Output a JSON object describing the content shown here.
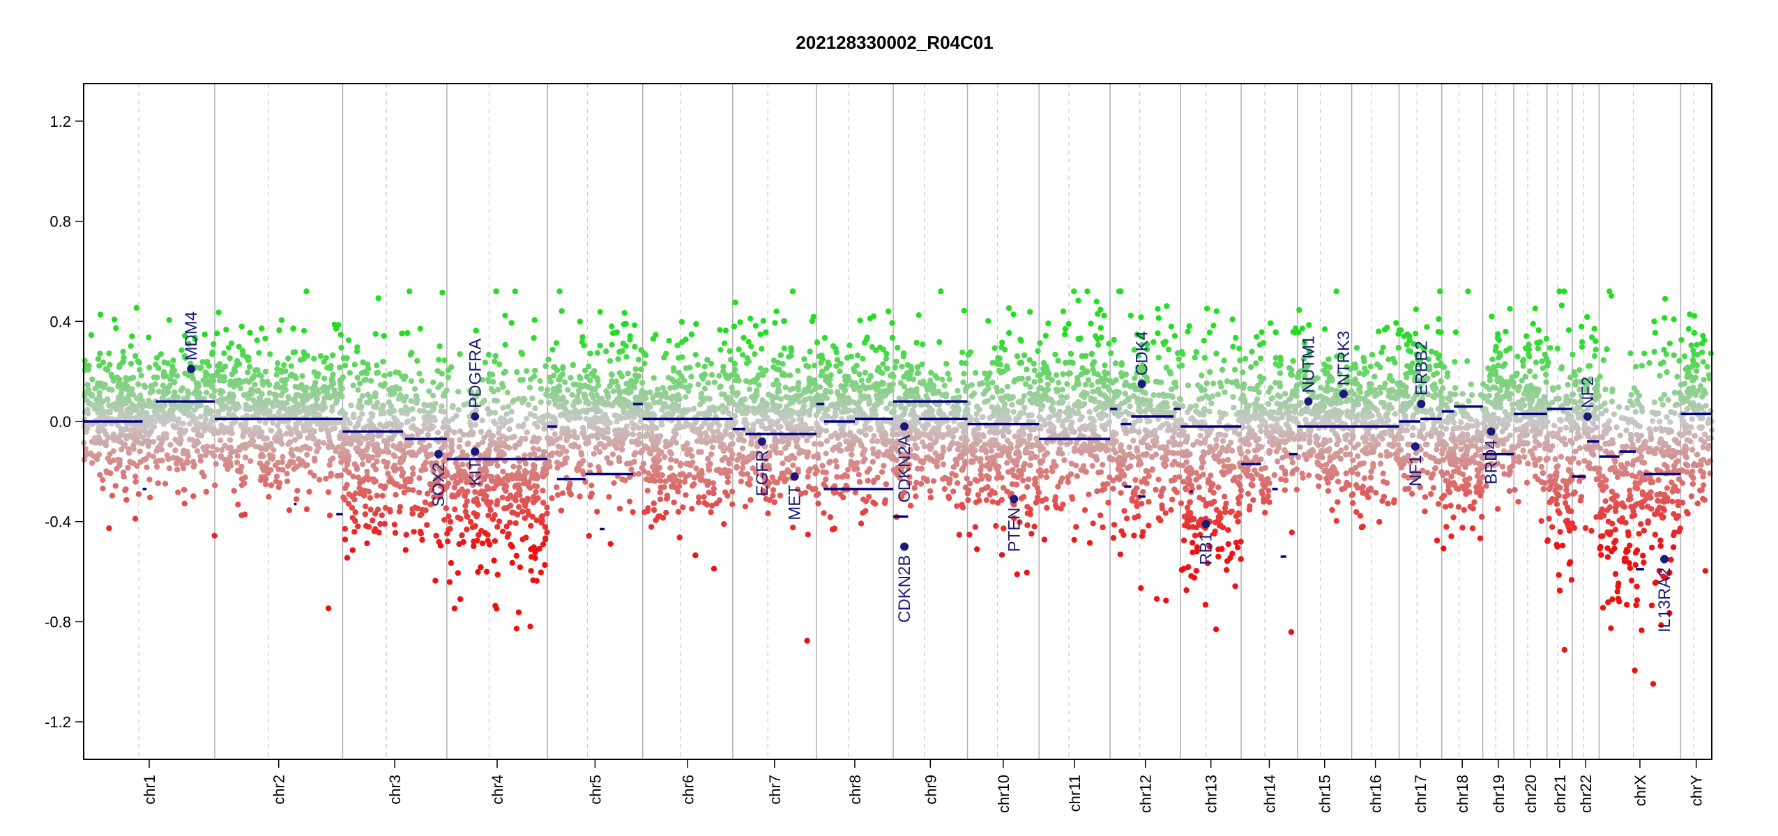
{
  "chart_data": {
    "type": "scatter",
    "title": "202128330002_R04C01",
    "xlabel": "",
    "ylabel": "",
    "ylim": [
      -1.35,
      1.35
    ],
    "yticks": [
      -1.2,
      -0.8,
      -0.4,
      0.0,
      0.4,
      0.8,
      1.2
    ],
    "grid": false,
    "colors": {
      "gain": "#22dd22",
      "neutral": "#c8c8c8",
      "loss": "#ee1111",
      "segment": "#000080",
      "gene": "#1a1a7a"
    },
    "chromosomes": [
      {
        "name": "chr1",
        "length": 249
      },
      {
        "name": "chr2",
        "length": 243
      },
      {
        "name": "chr3",
        "length": 198
      },
      {
        "name": "chr4",
        "length": 191
      },
      {
        "name": "chr5",
        "length": 181
      },
      {
        "name": "chr6",
        "length": 171
      },
      {
        "name": "chr7",
        "length": 159
      },
      {
        "name": "chr8",
        "length": 146
      },
      {
        "name": "chr9",
        "length": 141
      },
      {
        "name": "chr10",
        "length": 136
      },
      {
        "name": "chr11",
        "length": 135
      },
      {
        "name": "chr12",
        "length": 134
      },
      {
        "name": "chr13",
        "length": 115
      },
      {
        "name": "chr14",
        "length": 107
      },
      {
        "name": "chr15",
        "length": 103
      },
      {
        "name": "chr16",
        "length": 90
      },
      {
        "name": "chr17",
        "length": 81
      },
      {
        "name": "chr18",
        "length": 78
      },
      {
        "name": "chr19",
        "length": 59
      },
      {
        "name": "chr20",
        "length": 63
      },
      {
        "name": "chr21",
        "length": 48
      },
      {
        "name": "chr22",
        "length": 51
      },
      {
        "name": "chrX",
        "length": 155
      },
      {
        "name": "chrY",
        "length": 59
      }
    ],
    "segments": [
      {
        "chr": "chr1",
        "start": 0.0,
        "end": 0.45,
        "value": 0.0
      },
      {
        "chr": "chr1",
        "start": 0.45,
        "end": 0.48,
        "value": -0.27
      },
      {
        "chr": "chr1",
        "start": 0.55,
        "end": 1.0,
        "value": 0.08
      },
      {
        "chr": "chr2",
        "start": 0.0,
        "end": 1.0,
        "value": 0.01
      },
      {
        "chr": "chr2",
        "start": 0.62,
        "end": 0.64,
        "value": -0.33
      },
      {
        "chr": "chr2",
        "start": 0.95,
        "end": 1.0,
        "value": -0.37
      },
      {
        "chr": "chr3",
        "start": 0.0,
        "end": 0.58,
        "value": -0.04
      },
      {
        "chr": "chr3",
        "start": 0.6,
        "end": 1.0,
        "value": -0.07
      },
      {
        "chr": "chr3",
        "start": 1.0,
        "end": 1.0,
        "value": -0.07
      },
      {
        "chr": "chr4",
        "start": 0.0,
        "end": 1.0,
        "value": -0.15
      },
      {
        "chr": "chr5",
        "start": 0.0,
        "end": 0.1,
        "value": -0.02
      },
      {
        "chr": "chr5",
        "start": 0.1,
        "end": 0.4,
        "value": -0.23
      },
      {
        "chr": "chr5",
        "start": 0.4,
        "end": 0.9,
        "value": -0.21
      },
      {
        "chr": "chr5",
        "start": 0.55,
        "end": 0.6,
        "value": -0.43
      },
      {
        "chr": "chr5",
        "start": 0.9,
        "end": 1.0,
        "value": 0.07
      },
      {
        "chr": "chr6",
        "start": 0.0,
        "end": 1.0,
        "value": 0.01
      },
      {
        "chr": "chr7",
        "start": 0.0,
        "end": 0.15,
        "value": -0.03
      },
      {
        "chr": "chr7",
        "start": 0.15,
        "end": 1.0,
        "value": -0.05
      },
      {
        "chr": "chr8",
        "start": 0.0,
        "end": 0.1,
        "value": 0.07
      },
      {
        "chr": "chr8",
        "start": 0.1,
        "end": 1.0,
        "value": -0.27
      },
      {
        "chr": "chr8",
        "start": 0.1,
        "end": 0.5,
        "value": 0.0
      },
      {
        "chr": "chr8",
        "start": 0.5,
        "end": 1.0,
        "value": 0.01
      },
      {
        "chr": "chr9",
        "start": 0.0,
        "end": 0.2,
        "value": -0.38
      },
      {
        "chr": "chr9",
        "start": 0.35,
        "end": 1.0,
        "value": 0.01
      },
      {
        "chr": "chr9",
        "start": 0.0,
        "end": 1.0,
        "value": 0.08
      },
      {
        "chr": "chr10",
        "start": 0.0,
        "end": 0.5,
        "value": -0.01
      },
      {
        "chr": "chr10",
        "start": 0.5,
        "end": 1.0,
        "value": -0.01
      },
      {
        "chr": "chr11",
        "start": 0.0,
        "end": 1.0,
        "value": -0.07
      },
      {
        "chr": "chr12",
        "start": 0.0,
        "end": 0.1,
        "value": 0.05
      },
      {
        "chr": "chr12",
        "start": 0.15,
        "end": 0.3,
        "value": -0.01
      },
      {
        "chr": "chr12",
        "start": 0.3,
        "end": 0.9,
        "value": 0.02
      },
      {
        "chr": "chr12",
        "start": 0.2,
        "end": 0.3,
        "value": -0.26
      },
      {
        "chr": "chr12",
        "start": 0.4,
        "end": 0.5,
        "value": -0.3
      },
      {
        "chr": "chr12",
        "start": 0.9,
        "end": 1.0,
        "value": 0.05
      },
      {
        "chr": "chr13",
        "start": 0.0,
        "end": 1.0,
        "value": -0.02
      },
      {
        "chr": "chr13",
        "start": 0.15,
        "end": 0.2,
        "value": -0.28
      },
      {
        "chr": "chr14",
        "start": 0.0,
        "end": 0.35,
        "value": -0.17
      },
      {
        "chr": "chr14",
        "start": 0.55,
        "end": 0.65,
        "value": -0.27
      },
      {
        "chr": "chr14",
        "start": 0.7,
        "end": 0.8,
        "value": -0.54
      },
      {
        "chr": "chr14",
        "start": 0.85,
        "end": 1.0,
        "value": -0.13
      },
      {
        "chr": "chr15",
        "start": 0.0,
        "end": 1.0,
        "value": -0.02
      },
      {
        "chr": "chr16",
        "start": 0.0,
        "end": 1.0,
        "value": -0.02
      },
      {
        "chr": "chr17",
        "start": 0.0,
        "end": 0.5,
        "value": 0.0
      },
      {
        "chr": "chr17",
        "start": 0.5,
        "end": 1.0,
        "value": 0.01
      },
      {
        "chr": "chr18",
        "start": 0.0,
        "end": 0.3,
        "value": 0.04
      },
      {
        "chr": "chr18",
        "start": 0.3,
        "end": 1.0,
        "value": 0.06
      },
      {
        "chr": "chr19",
        "start": 0.0,
        "end": 1.0,
        "value": -0.13
      },
      {
        "chr": "chr20",
        "start": 0.0,
        "end": 1.0,
        "value": 0.03
      },
      {
        "chr": "chr21",
        "start": 0.0,
        "end": 1.0,
        "value": 0.05
      },
      {
        "chr": "chr22",
        "start": 0.0,
        "end": 0.5,
        "value": -0.22
      },
      {
        "chr": "chr22",
        "start": 0.55,
        "end": 1.0,
        "value": -0.08
      },
      {
        "chr": "chrX",
        "start": 0.0,
        "end": 0.25,
        "value": -0.14
      },
      {
        "chr": "chrX",
        "start": 0.25,
        "end": 0.45,
        "value": -0.12
      },
      {
        "chr": "chrX",
        "start": 0.45,
        "end": 0.55,
        "value": -0.59
      },
      {
        "chr": "chrX",
        "start": 0.55,
        "end": 1.0,
        "value": -0.21
      },
      {
        "chr": "chrY",
        "start": 0.0,
        "end": 1.0,
        "value": 0.03
      }
    ],
    "point_profile": [
      {
        "chr": "chr1",
        "mean": 0.02,
        "sd": 0.13
      },
      {
        "chr": "chr2",
        "mean": 0.02,
        "sd": 0.14
      },
      {
        "chr": "chr3",
        "mean": -0.08,
        "sd": 0.18
      },
      {
        "chr": "chr4",
        "mean": -0.18,
        "sd": 0.2
      },
      {
        "chr": "chr5",
        "mean": 0.02,
        "sd": 0.15
      },
      {
        "chr": "chr6",
        "mean": -0.04,
        "sd": 0.16
      },
      {
        "chr": "chr7",
        "mean": 0.0,
        "sd": 0.16
      },
      {
        "chr": "chr8",
        "mean": 0.02,
        "sd": 0.16
      },
      {
        "chr": "chr9",
        "mean": -0.02,
        "sd": 0.14
      },
      {
        "chr": "chr10",
        "mean": -0.06,
        "sd": 0.17
      },
      {
        "chr": "chr11",
        "mean": 0.01,
        "sd": 0.17
      },
      {
        "chr": "chr12",
        "mean": -0.03,
        "sd": 0.2
      },
      {
        "chr": "chr13",
        "mean": -0.15,
        "sd": 0.22
      },
      {
        "chr": "chr14",
        "mean": -0.02,
        "sd": 0.15
      },
      {
        "chr": "chr15",
        "mean": 0.0,
        "sd": 0.15
      },
      {
        "chr": "chr16",
        "mean": 0.0,
        "sd": 0.15
      },
      {
        "chr": "chr17",
        "mean": 0.05,
        "sd": 0.17
      },
      {
        "chr": "chr18",
        "mean": -0.12,
        "sd": 0.15
      },
      {
        "chr": "chr19",
        "mean": 0.04,
        "sd": 0.14
      },
      {
        "chr": "chr20",
        "mean": 0.05,
        "sd": 0.14
      },
      {
        "chr": "chr21",
        "mean": -0.2,
        "sd": 0.22
      },
      {
        "chr": "chr22",
        "mean": 0.0,
        "sd": 0.15
      },
      {
        "chr": "chrX",
        "mean": -0.2,
        "sd": 0.25
      },
      {
        "chr": "chrY",
        "mean": 0.02,
        "sd": 0.18
      }
    ],
    "genes": [
      {
        "name": "MDM4",
        "chr": "chr1",
        "pos": 0.82,
        "value": 0.21
      },
      {
        "name": "SOX2",
        "chr": "chr3",
        "pos": 0.92,
        "value": -0.13
      },
      {
        "name": "PDGFRA",
        "chr": "chr4",
        "pos": 0.28,
        "value": 0.02
      },
      {
        "name": "KIT",
        "chr": "chr4",
        "pos": 0.28,
        "value": -0.12
      },
      {
        "name": "EGFR",
        "chr": "chr7",
        "pos": 0.35,
        "value": -0.08
      },
      {
        "name": "MET",
        "chr": "chr7",
        "pos": 0.74,
        "value": -0.22
      },
      {
        "name": "CDKN2A",
        "chr": "chr9",
        "pos": 0.15,
        "value": -0.02
      },
      {
        "name": "CDKN2B",
        "chr": "chr9",
        "pos": 0.15,
        "value": -0.5
      },
      {
        "name": "PTEN",
        "chr": "chr10",
        "pos": 0.65,
        "value": -0.31
      },
      {
        "name": "CDK4",
        "chr": "chr12",
        "pos": 0.45,
        "value": 0.15
      },
      {
        "name": "RB1",
        "chr": "chr13",
        "pos": 0.42,
        "value": -0.41
      },
      {
        "name": "NUTM1",
        "chr": "chr15",
        "pos": 0.2,
        "value": 0.08
      },
      {
        "name": "NTRK3",
        "chr": "chr15",
        "pos": 0.85,
        "value": 0.11
      },
      {
        "name": "NF1",
        "chr": "chr17",
        "pos": 0.38,
        "value": -0.1
      },
      {
        "name": "ERBB2",
        "chr": "chr17",
        "pos": 0.52,
        "value": 0.07
      },
      {
        "name": "BRD4",
        "chr": "chr19",
        "pos": 0.27,
        "value": -0.04
      },
      {
        "name": "NF2",
        "chr": "chr22",
        "pos": 0.57,
        "value": 0.02
      },
      {
        "name": "IL13RA2",
        "chr": "chrX",
        "pos": 0.8,
        "value": -0.55
      }
    ]
  }
}
